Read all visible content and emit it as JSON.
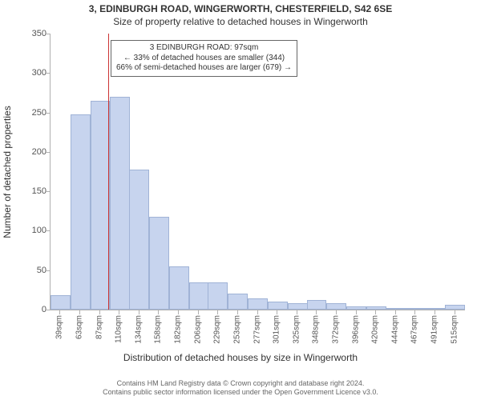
{
  "title_main": "3, EDINBURGH ROAD, WINGERWORTH, CHESTERFIELD, S42 6SE",
  "title_sub": "Size of property relative to detached houses in Wingerworth",
  "axes": {
    "ylabel": "Number of detached properties",
    "xlabel": "Distribution of detached houses by size in Wingerworth",
    "ylim_max": 350,
    "xlim_min": 27,
    "xlim_max": 527,
    "yticks": [
      0,
      50,
      100,
      150,
      200,
      250,
      300,
      350
    ],
    "ytick_labels": [
      "0",
      "50",
      "100",
      "150",
      "200",
      "250",
      "300",
      "350"
    ],
    "xticks": [
      39,
      63,
      87,
      110,
      134,
      158,
      182,
      206,
      229,
      253,
      277,
      301,
      325,
      348,
      372,
      396,
      420,
      444,
      467,
      491,
      515
    ],
    "xtick_labels": [
      "39sqm",
      "63sqm",
      "87sqm",
      "110sqm",
      "134sqm",
      "158sqm",
      "182sqm",
      "206sqm",
      "229sqm",
      "253sqm",
      "277sqm",
      "301sqm",
      "325sqm",
      "348sqm",
      "372sqm",
      "396sqm",
      "420sqm",
      "444sqm",
      "467sqm",
      "491sqm",
      "515sqm"
    ],
    "tick_fontsize": 10,
    "label_fontsize": 12,
    "axis_color": "#b0b0b0",
    "tick_color": "#555555"
  },
  "chart": {
    "type": "histogram",
    "bar_color": "#c7d4ee",
    "bar_border_color": "#a0b3d6",
    "bin_width": 24,
    "bins": [
      {
        "x": 27,
        "count": 18
      },
      {
        "x": 51,
        "count": 248
      },
      {
        "x": 75,
        "count": 265
      },
      {
        "x": 99,
        "count": 270
      },
      {
        "x": 122,
        "count": 178
      },
      {
        "x": 146,
        "count": 118
      },
      {
        "x": 170,
        "count": 55
      },
      {
        "x": 194,
        "count": 35
      },
      {
        "x": 217,
        "count": 35
      },
      {
        "x": 241,
        "count": 20
      },
      {
        "x": 265,
        "count": 14
      },
      {
        "x": 289,
        "count": 10
      },
      {
        "x": 313,
        "count": 8
      },
      {
        "x": 336,
        "count": 12
      },
      {
        "x": 360,
        "count": 8
      },
      {
        "x": 384,
        "count": 4
      },
      {
        "x": 408,
        "count": 4
      },
      {
        "x": 432,
        "count": 2
      },
      {
        "x": 455,
        "count": 2
      },
      {
        "x": 479,
        "count": 2
      },
      {
        "x": 503,
        "count": 6
      }
    ],
    "marker_line": {
      "x": 97,
      "color": "#cc3333"
    }
  },
  "callout": {
    "line1": "3 EDINBURGH ROAD: 97sqm",
    "line2": "← 33% of detached houses are smaller (344)",
    "line3": "66% of semi-detached houses are larger (679) →"
  },
  "attribution": {
    "line1": "Contains HM Land Registry data © Crown copyright and database right 2024.",
    "line2": "Contains public sector information licensed under the Open Government Licence v3.0."
  }
}
